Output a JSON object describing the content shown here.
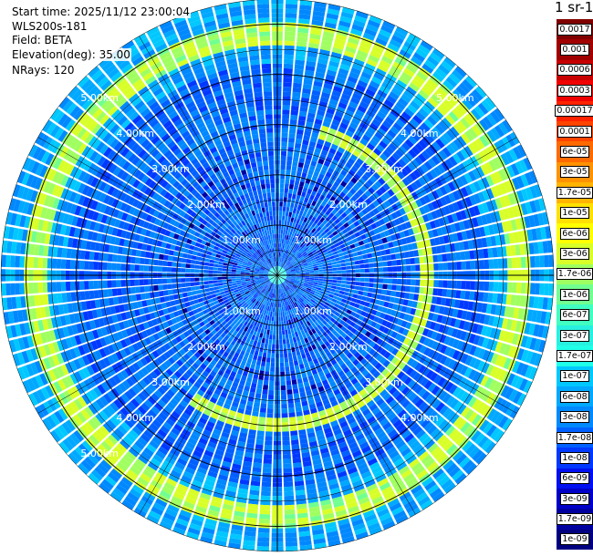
{
  "info": {
    "start_time": "Start time: 2025/11/12 23:00:04",
    "station": "WLS200s-181",
    "field": "Field: BETA",
    "elevation": "Elevation(deg): 35.00",
    "nrays": "NRays: 120"
  },
  "colorbar": {
    "title": "1 sr-1",
    "levels": [
      {
        "label": "0.0017",
        "color": "#800000"
      },
      {
        "label": "0.001",
        "color": "#a00000"
      },
      {
        "label": "0.0006",
        "color": "#c80000"
      },
      {
        "label": "0.0003",
        "color": "#f00000"
      },
      {
        "label": "0.00017",
        "color": "#ff2200"
      },
      {
        "label": "0.0001",
        "color": "#ff4400"
      },
      {
        "label": "6e-05",
        "color": "#ff6a00"
      },
      {
        "label": "3e-05",
        "color": "#ff9200"
      },
      {
        "label": "1.7e-05",
        "color": "#ffb400"
      },
      {
        "label": "1e-05",
        "color": "#ffe000"
      },
      {
        "label": "6e-06",
        "color": "#ffff00"
      },
      {
        "label": "3e-06",
        "color": "#d8ff28"
      },
      {
        "label": "1.7e-06",
        "color": "#a0ff60"
      },
      {
        "label": "1e-06",
        "color": "#70ff90"
      },
      {
        "label": "6e-07",
        "color": "#40ffc0"
      },
      {
        "label": "3e-07",
        "color": "#28f0e0"
      },
      {
        "label": "1.7e-07",
        "color": "#20ffe8"
      },
      {
        "label": "1e-07",
        "color": "#00c8ff"
      },
      {
        "label": "6e-08",
        "color": "#00a8ff"
      },
      {
        "label": "3e-08",
        "color": "#0088ff"
      },
      {
        "label": "1.7e-08",
        "color": "#0060ff"
      },
      {
        "label": "1e-08",
        "color": "#0038ff"
      },
      {
        "label": "6e-09",
        "color": "#0010f0"
      },
      {
        "label": "3e-09",
        "color": "#0000c8"
      },
      {
        "label": "1.7e-09",
        "color": "#0000a0"
      },
      {
        "label": "1e-09",
        "color": "#000080"
      }
    ]
  },
  "chart_data": {
    "type": "heatmap",
    "title": "",
    "projection": "polar (PPI scan)",
    "range_unit": "km",
    "max_range_km": 5.5,
    "nrays": 120,
    "range_rings": [
      {
        "value": 1.0,
        "label": "1.00km"
      },
      {
        "value": 2.0,
        "label": "2.00km"
      },
      {
        "value": 3.0,
        "label": "3.00km"
      },
      {
        "value": 4.0,
        "label": "4.00km"
      },
      {
        "value": 5.0,
        "label": "5.00km"
      }
    ],
    "ring_label_quadrants": [
      "top-left",
      "top-right",
      "bottom-left",
      "bottom-right"
    ],
    "ring_label_quadrants_for_5km": [
      "top-left",
      "top-right",
      "bottom-left"
    ],
    "color_scale": "log",
    "value_range": [
      1e-09,
      0.0017
    ],
    "features": [
      {
        "name": "aerosol ring (outer)",
        "range_km": [
          4.55,
          5.0
        ],
        "approx_value": 3e-06
      },
      {
        "name": "aerosol arc (east)",
        "range_km": [
          2.8,
          3.1
        ],
        "approx_value": 3e-06
      }
    ]
  }
}
